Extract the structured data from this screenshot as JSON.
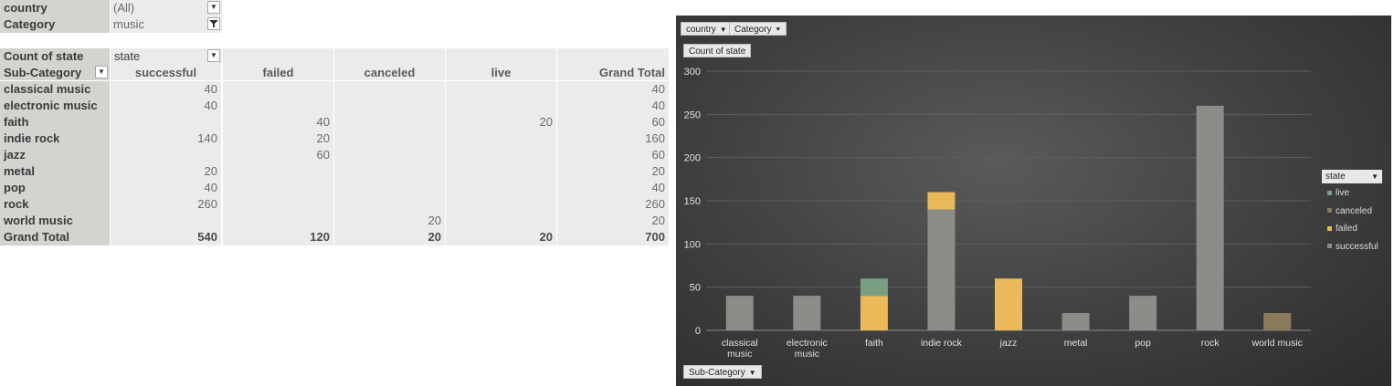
{
  "filters": [
    {
      "label": "country",
      "value": "(All)",
      "icon": "dropdown-icon"
    },
    {
      "label": "Category",
      "value": "music",
      "icon": "filter-icon"
    }
  ],
  "pivot": {
    "value_label": "Count of state",
    "column_field": "state",
    "row_field": "Sub-Category",
    "columns": [
      "successful",
      "failed",
      "canceled",
      "live",
      "Grand Total"
    ],
    "rows": [
      {
        "label": "classical music",
        "values": [
          "40",
          "",
          "",
          "",
          "40"
        ]
      },
      {
        "label": "electronic music",
        "values": [
          "40",
          "",
          "",
          "",
          "40"
        ]
      },
      {
        "label": "faith",
        "values": [
          "",
          "40",
          "",
          "20",
          "60"
        ]
      },
      {
        "label": "indie rock",
        "values": [
          "140",
          "20",
          "",
          "",
          "160"
        ]
      },
      {
        "label": "jazz",
        "values": [
          "",
          "60",
          "",
          "",
          "60"
        ]
      },
      {
        "label": "metal",
        "values": [
          "20",
          "",
          "",
          "",
          "20"
        ]
      },
      {
        "label": "pop",
        "values": [
          "40",
          "",
          "",
          "",
          "40"
        ]
      },
      {
        "label": "rock",
        "values": [
          "260",
          "",
          "",
          "",
          "260"
        ]
      },
      {
        "label": "world music",
        "values": [
          "",
          "",
          "20",
          "",
          "20"
        ]
      }
    ],
    "grand_total": {
      "label": "Grand Total",
      "values": [
        "540",
        "120",
        "20",
        "20",
        "700"
      ]
    }
  },
  "chart_buttons": {
    "country": "country",
    "category": "Category",
    "value": "Count of state",
    "axis": "Sub-Category"
  },
  "colors": {
    "successful": "#8c8c88",
    "failed": "#e9b95a",
    "canceled": "#8a7a5c",
    "live": "#7a9e84"
  },
  "chart_data": {
    "type": "bar",
    "stacked": true,
    "categories": [
      "classical music",
      "electronic music",
      "faith",
      "indie rock",
      "jazz",
      "metal",
      "pop",
      "rock",
      "world music"
    ],
    "series": [
      {
        "name": "successful",
        "values": [
          40,
          40,
          0,
          140,
          0,
          20,
          40,
          260,
          0
        ]
      },
      {
        "name": "failed",
        "values": [
          0,
          0,
          40,
          20,
          60,
          0,
          0,
          0,
          0
        ]
      },
      {
        "name": "canceled",
        "values": [
          0,
          0,
          0,
          0,
          0,
          0,
          0,
          0,
          20
        ]
      },
      {
        "name": "live",
        "values": [
          0,
          0,
          20,
          0,
          0,
          0,
          0,
          0,
          0
        ]
      }
    ],
    "ylim": [
      0,
      300
    ],
    "yticks": [
      0,
      50,
      100,
      150,
      200,
      250,
      300
    ],
    "grid": true,
    "legend_title": "state",
    "legend_order": [
      "live",
      "canceled",
      "failed",
      "successful"
    ],
    "legend_position": "right"
  }
}
